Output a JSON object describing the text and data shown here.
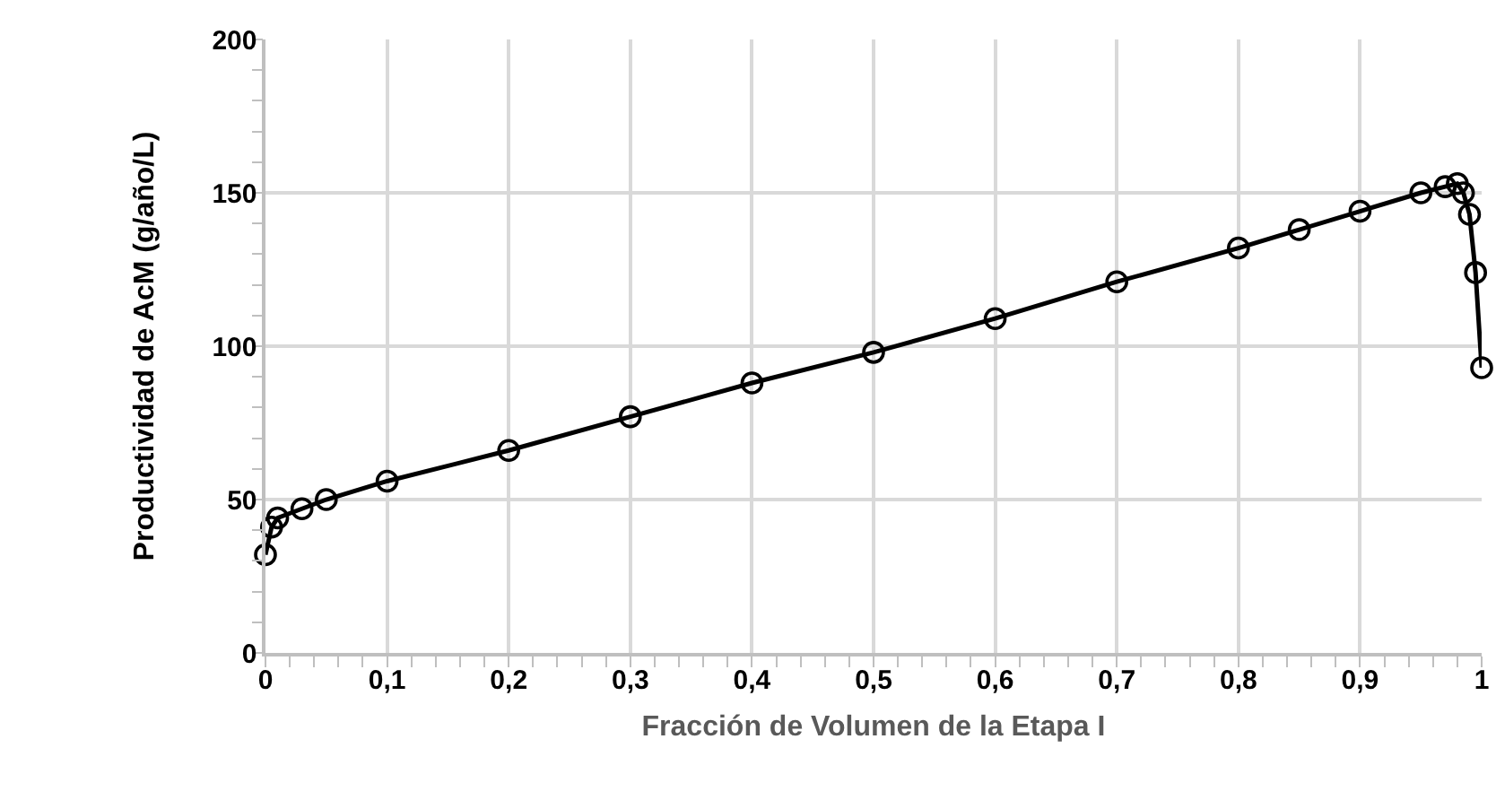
{
  "chart_data": {
    "type": "line",
    "xlabel": "Fracción de Volumen de la Etapa I",
    "ylabel": "Productividad de AcM (g/año/L)",
    "x": [
      0,
      0.005,
      0.01,
      0.03,
      0.05,
      0.1,
      0.2,
      0.3,
      0.4,
      0.5,
      0.6,
      0.7,
      0.8,
      0.85,
      0.9,
      0.95,
      0.97,
      0.98,
      0.985,
      0.99,
      0.995,
      1
    ],
    "series": [
      {
        "color": "#000000",
        "values": [
          32,
          41,
          44,
          47,
          50,
          56,
          66,
          77,
          88,
          98,
          109,
          121,
          132,
          138,
          144,
          150,
          152,
          153,
          150,
          143,
          124,
          93
        ]
      }
    ],
    "xlim": [
      0,
      1
    ],
    "xticks": [
      0,
      {
        "value": 0.1,
        "label": "0,1"
      },
      {
        "value": 0.2,
        "label": "0,2"
      },
      {
        "value": 0.3,
        "label": "0,3"
      },
      {
        "value": 0.4,
        "label": "0,4"
      },
      {
        "value": 0.5,
        "label": "0,5"
      },
      {
        "value": 0.6,
        "label": "0,6"
      },
      {
        "value": 0.7,
        "label": "0,7"
      },
      {
        "value": 0.8,
        "label": "0,8"
      },
      {
        "value": 0.9,
        "label": "0,9"
      },
      1
    ],
    "ylim": [
      0,
      200
    ],
    "yticks": [
      0,
      50,
      100,
      150,
      200
    ],
    "grid": true,
    "marker": "circle",
    "line_style": "solid"
  }
}
